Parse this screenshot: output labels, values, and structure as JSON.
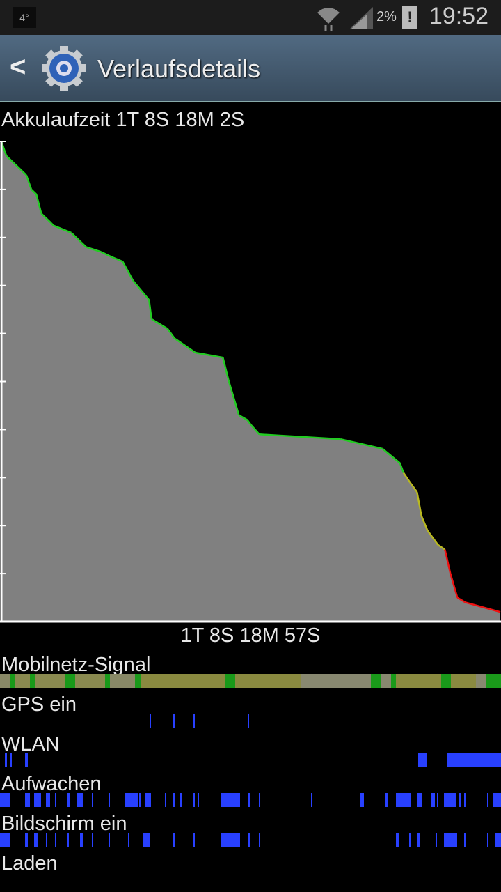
{
  "status_bar": {
    "temperature": "4°",
    "battery_percent": "2%",
    "time": "19:52",
    "icons": [
      "wifi-icon",
      "signal-icon",
      "battery-alert-icon"
    ]
  },
  "header": {
    "title": "Verlaufsdetails",
    "icon": "settings-gear-icon"
  },
  "battery_label": "Akkulaufzeit 1T 8S 18M 2S",
  "duration_label": "1T 8S 18M 57S",
  "chart_data": {
    "type": "area",
    "xlabel": "",
    "ylabel": "",
    "ylim": [
      0,
      100
    ],
    "x_unit": "percent of elapsed time",
    "y_unit": "battery percent",
    "colors": {
      "fill": "#808080",
      "high": "#22cc22",
      "mid": "#b8b820",
      "low": "#ee1111"
    },
    "x": [
      0,
      1,
      5,
      6,
      7,
      8,
      10,
      10.4,
      14,
      16,
      17,
      20,
      22,
      24.3,
      26.4,
      29.6,
      30.1,
      33.3,
      34.7,
      36.1,
      38.9,
      44.4,
      45.6,
      47.6,
      49.3,
      50,
      51.7,
      68,
      76.4,
      79.9,
      80.6,
      81.9,
      83.3,
      84.2,
      85.4,
      87.5,
      88.9,
      90,
      91.4,
      93,
      100
    ],
    "y": [
      100,
      97,
      93,
      90,
      89,
      85,
      83,
      82.5,
      81,
      79,
      78,
      77,
      76,
      75,
      71,
      67,
      63,
      61,
      59,
      58,
      56,
      55,
      50,
      43,
      42,
      41,
      39,
      38,
      36,
      33,
      31,
      29,
      27,
      22,
      19,
      16,
      15,
      10,
      5,
      4,
      2
    ]
  },
  "tracks": [
    {
      "label": "Mobilnetz-Signal",
      "type": "signal",
      "segments": [
        [
          0,
          2,
          "#888866"
        ],
        [
          2,
          3,
          "#1a9a1a"
        ],
        [
          3,
          6,
          "#8a8a50"
        ],
        [
          6,
          7,
          "#1a9a1a"
        ],
        [
          7,
          13,
          "#8a8a50"
        ],
        [
          13,
          15,
          "#1a9a1a"
        ],
        [
          15,
          21,
          "#8a8a50"
        ],
        [
          21,
          22,
          "#1a9a1a"
        ],
        [
          22,
          27,
          "#888866"
        ],
        [
          27,
          28,
          "#1a9a1a"
        ],
        [
          28,
          45,
          "#8a8a40"
        ],
        [
          45,
          47,
          "#1a9a1a"
        ],
        [
          47,
          60,
          "#8a8a40"
        ],
        [
          60,
          74,
          "#888870"
        ],
        [
          74,
          76,
          "#1a9a1a"
        ],
        [
          76,
          78,
          "#888870"
        ],
        [
          78,
          79,
          "#1a9a1a"
        ],
        [
          79,
          88,
          "#8a8a40"
        ],
        [
          88,
          90,
          "#1a9a1a"
        ],
        [
          90,
          95,
          "#8a8a40"
        ],
        [
          95,
          97,
          "#888870"
        ],
        [
          97,
          100,
          "#1a9a1a"
        ]
      ]
    },
    {
      "label": "GPS ein",
      "type": "bars",
      "segments": [
        [
          29.9,
          30.1
        ],
        [
          34.6,
          34.9
        ],
        [
          38.6,
          38.8
        ],
        [
          49.4,
          49.6
        ]
      ]
    },
    {
      "label": "WLAN",
      "type": "bars",
      "segments": [
        [
          1,
          1.4
        ],
        [
          2,
          2.3
        ],
        [
          5,
          5.5
        ],
        [
          83.5,
          85.3
        ],
        [
          89.3,
          100
        ]
      ]
    },
    {
      "label": "Aufwachen",
      "type": "bars",
      "segments": [
        [
          0,
          2
        ],
        [
          5,
          6
        ],
        [
          6.8,
          8.2
        ],
        [
          9.2,
          10
        ],
        [
          11,
          11.2
        ],
        [
          13.5,
          14
        ],
        [
          15.3,
          16.7
        ],
        [
          18.4,
          18.6
        ],
        [
          21.6,
          21.8
        ],
        [
          24.8,
          27.5
        ],
        [
          27.8,
          28.2
        ],
        [
          28.9,
          30.1
        ],
        [
          32.9,
          33.1
        ],
        [
          34.6,
          35
        ],
        [
          36,
          36.2
        ],
        [
          38.6,
          38.8
        ],
        [
          39.5,
          39.7
        ],
        [
          44.2,
          47.9
        ],
        [
          49.4,
          49.8
        ],
        [
          51.6,
          51.9
        ],
        [
          62.1,
          62.3
        ],
        [
          72,
          72.6
        ],
        [
          77,
          77.3
        ],
        [
          79,
          82
        ],
        [
          83.3,
          84.1
        ],
        [
          86.1,
          86.8
        ],
        [
          87.2,
          87.5
        ],
        [
          88.6,
          91
        ],
        [
          91.6,
          92
        ],
        [
          92.7,
          93
        ],
        [
          97.2,
          97.4
        ],
        [
          98.4,
          100
        ]
      ]
    },
    {
      "label": "Bildschirm ein",
      "type": "bars",
      "segments": [
        [
          0,
          2
        ],
        [
          5,
          5.6
        ],
        [
          6.8,
          7.7
        ],
        [
          9.2,
          9.4
        ],
        [
          11,
          11.1
        ],
        [
          13.5,
          13.7
        ],
        [
          16,
          16.6
        ],
        [
          18.4,
          18.6
        ],
        [
          21.6,
          21.7
        ],
        [
          25.6,
          25.7
        ],
        [
          28.5,
          29.9
        ],
        [
          34.6,
          34.9
        ],
        [
          38.6,
          38.8
        ],
        [
          44.2,
          47.9
        ],
        [
          49.4,
          49.8
        ],
        [
          51.6,
          51.9
        ],
        [
          79,
          79.6
        ],
        [
          81.7,
          81.9
        ],
        [
          83.3,
          83.8
        ],
        [
          86.9,
          87.1
        ],
        [
          88.6,
          91.2
        ],
        [
          92.7,
          93
        ],
        [
          97.2,
          97.4
        ],
        [
          98.9,
          100
        ]
      ]
    },
    {
      "label": "Laden",
      "type": "bars",
      "segments": []
    }
  ]
}
